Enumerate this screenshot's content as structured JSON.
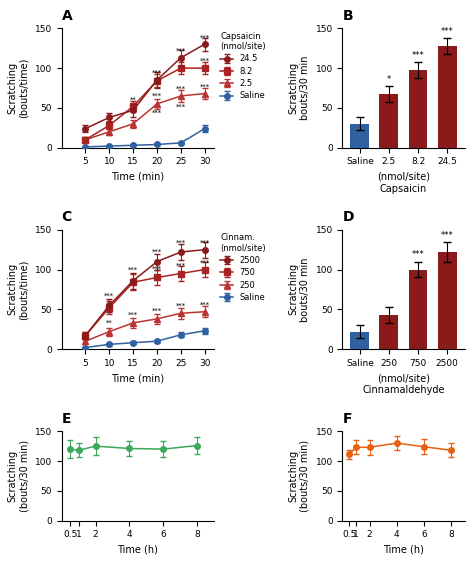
{
  "chart_data": [
    {
      "type": "line",
      "title": "A",
      "xlabel": "Time (min)",
      "ylabel": "Scratching\n(bouts/time)",
      "x": [
        5,
        10,
        15,
        20,
        25,
        30
      ],
      "xlim": [
        0,
        32
      ],
      "xticks": [
        5,
        10,
        15,
        20,
        25,
        30
      ],
      "ylim": [
        0,
        150
      ],
      "yticks": [
        0,
        50,
        100,
        150
      ],
      "legend": "right",
      "legend_title": "Capsaicin\n(nmol/site)",
      "series": [
        {
          "name": "24.5",
          "color": "#8B1A1A",
          "marker": "circle",
          "values": [
            24,
            38,
            47,
            85,
            113,
            130
          ],
          "errors": [
            4,
            6,
            8,
            10,
            10,
            8
          ]
        },
        {
          "name": "8.2",
          "color": "#AA2222",
          "marker": "square",
          "values": [
            10,
            28,
            52,
            84,
            100,
            100
          ],
          "errors": [
            3,
            5,
            7,
            8,
            8,
            8
          ]
        },
        {
          "name": "2.5",
          "color": "#BB3333",
          "marker": "triangle",
          "values": [
            10,
            20,
            30,
            55,
            65,
            68
          ],
          "errors": [
            3,
            4,
            5,
            6,
            7,
            7
          ]
        },
        {
          "name": "Saline",
          "color": "#3060A0",
          "marker": "circle",
          "values": [
            1,
            2,
            3,
            4,
            6,
            24
          ],
          "errors": [
            0.5,
            0.8,
            1,
            1,
            1.5,
            4
          ]
        }
      ],
      "annotations": [
        {
          "x": 15,
          "y": 57,
          "text": "**"
        },
        {
          "x": 20,
          "y": 90,
          "text": "***"
        },
        {
          "x": 20,
          "y": 62,
          "text": "***"
        },
        {
          "x": 20,
          "y": 40,
          "text": "***"
        },
        {
          "x": 25,
          "y": 118,
          "text": "***"
        },
        {
          "x": 25,
          "y": 70,
          "text": "***"
        },
        {
          "x": 25,
          "y": 48,
          "text": "***"
        },
        {
          "x": 30,
          "y": 134,
          "text": "***"
        },
        {
          "x": 30,
          "y": 105,
          "text": "***"
        },
        {
          "x": 30,
          "y": 73,
          "text": "***"
        }
      ]
    },
    {
      "type": "bar",
      "title": "B",
      "xlabel": "(nmol/site)\nCapsaicin",
      "ylabel": "Scratching\nbouts/30 min",
      "categories": [
        "Saline",
        "2.5",
        "8.2",
        "24.5"
      ],
      "values": [
        30,
        68,
        98,
        128
      ],
      "errors": [
        8,
        10,
        10,
        10
      ],
      "colors": [
        "#3060A0",
        "#8B1A1A",
        "#8B1A1A",
        "#8B1A1A"
      ],
      "ylim": [
        0,
        150
      ],
      "yticks": [
        0,
        50,
        100,
        150
      ],
      "annotations": [
        {
          "category": "2.5",
          "text": "*"
        },
        {
          "category": "8.2",
          "text": "***"
        },
        {
          "category": "24.5",
          "text": "***"
        }
      ]
    },
    {
      "type": "line",
      "title": "C",
      "xlabel": "Time (min)",
      "ylabel": "Scratching\n(bouts/time)",
      "x": [
        5,
        10,
        15,
        20,
        25,
        30
      ],
      "xlim": [
        0,
        32
      ],
      "xticks": [
        5,
        10,
        15,
        20,
        25,
        30
      ],
      "ylim": [
        0,
        150
      ],
      "yticks": [
        0,
        50,
        100,
        150
      ],
      "legend": "right",
      "legend_title": "Cinnam.\n(nmol/site)",
      "series": [
        {
          "name": "2500",
          "color": "#8B1A1A",
          "marker": "circle",
          "values": [
            17,
            55,
            86,
            110,
            122,
            125
          ],
          "errors": [
            4,
            8,
            10,
            10,
            10,
            10
          ]
        },
        {
          "name": "750",
          "color": "#AA2222",
          "marker": "square",
          "values": [
            17,
            52,
            84,
            90,
            95,
            100
          ],
          "errors": [
            4,
            8,
            10,
            10,
            10,
            10
          ]
        },
        {
          "name": "250",
          "color": "#BB3333",
          "marker": "triangle",
          "values": [
            10,
            22,
            33,
            38,
            45,
            47
          ],
          "errors": [
            3,
            5,
            6,
            6,
            7,
            7
          ]
        },
        {
          "name": "Saline",
          "color": "#3060A0",
          "marker": "circle",
          "values": [
            2,
            6,
            8,
            10,
            18,
            23
          ],
          "errors": [
            1,
            2,
            2,
            2,
            3,
            4
          ]
        }
      ],
      "annotations": [
        {
          "x": 10,
          "y": 63,
          "text": "***"
        },
        {
          "x": 10,
          "y": 29,
          "text": "**"
        },
        {
          "x": 15,
          "y": 96,
          "text": "***"
        },
        {
          "x": 15,
          "y": 40,
          "text": "***"
        },
        {
          "x": 20,
          "y": 118,
          "text": "***"
        },
        {
          "x": 20,
          "y": 97,
          "text": "***"
        },
        {
          "x": 20,
          "y": 44,
          "text": "***"
        },
        {
          "x": 25,
          "y": 130,
          "text": "***"
        },
        {
          "x": 25,
          "y": 101,
          "text": "***"
        },
        {
          "x": 25,
          "y": 51,
          "text": "***"
        },
        {
          "x": 30,
          "y": 130,
          "text": "***"
        },
        {
          "x": 30,
          "y": 105,
          "text": "***"
        },
        {
          "x": 30,
          "y": 52,
          "text": "***"
        }
      ]
    },
    {
      "type": "bar",
      "title": "D",
      "xlabel": "(nmol/site)\nCinnamaldehyde",
      "ylabel": "Scratching\nbouts/30 min",
      "categories": [
        "Saline",
        "250",
        "750",
        "2500"
      ],
      "values": [
        22,
        43,
        100,
        122
      ],
      "errors": [
        8,
        10,
        10,
        12
      ],
      "colors": [
        "#3060A0",
        "#8B1A1A",
        "#8B1A1A",
        "#8B1A1A"
      ],
      "ylim": [
        0,
        150
      ],
      "yticks": [
        0,
        50,
        100,
        150
      ],
      "annotations": [
        {
          "category": "750",
          "text": "***"
        },
        {
          "category": "2500",
          "text": "***"
        }
      ]
    },
    {
      "type": "line",
      "title": "E",
      "xlabel": "Time (h)",
      "ylabel": "Scratching\n(bouts/30 min)",
      "x": [
        0.5,
        1,
        2,
        4,
        6,
        8
      ],
      "xlim": [
        0,
        9
      ],
      "xticks": [
        0.5,
        1,
        2,
        4,
        6,
        8
      ],
      "ylim": [
        0,
        150
      ],
      "yticks": [
        0,
        50,
        100,
        150
      ],
      "series": [
        {
          "color": "#3AAA5A",
          "marker": "circle",
          "values": [
            120,
            118,
            125,
            121,
            120,
            126
          ],
          "errors": [
            15,
            12,
            15,
            13,
            13,
            14
          ]
        }
      ]
    },
    {
      "type": "line",
      "title": "F",
      "xlabel": "Time (h)",
      "ylabel": "Scratching\n(bouts/30 min)",
      "x": [
        0.5,
        1,
        2,
        4,
        6,
        8
      ],
      "xlim": [
        0,
        9
      ],
      "xticks": [
        0.5,
        1,
        2,
        4,
        6,
        8
      ],
      "ylim": [
        0,
        150
      ],
      "yticks": [
        0,
        50,
        100,
        150
      ],
      "series": [
        {
          "color": "#E86010",
          "marker": "circle",
          "values": [
            111,
            123,
            123,
            130,
            124,
            118
          ],
          "errors": [
            7,
            12,
            13,
            12,
            13,
            12
          ]
        }
      ]
    }
  ]
}
